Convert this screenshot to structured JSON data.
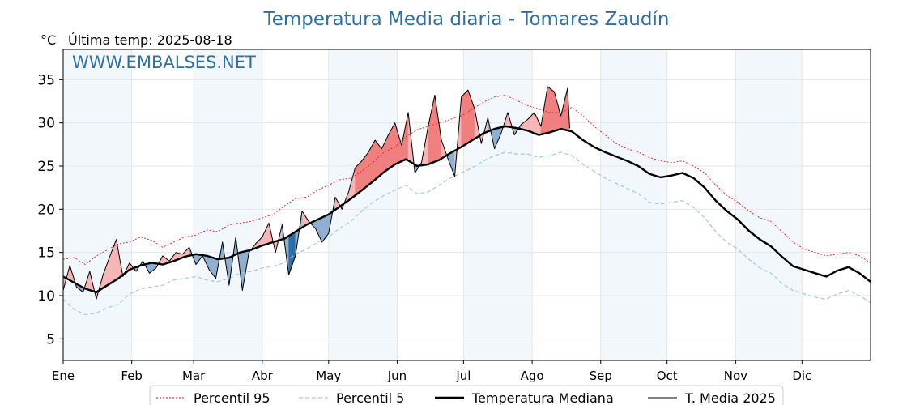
{
  "chart_data": {
    "type": "line",
    "title": "Temperatura Media diaria - Tomares  Zaudín",
    "unit_label": "°C",
    "last_temp_label": "Última temp: 2025-08-18",
    "watermark": "WWW.EMBALSES.NET",
    "xlim": [
      0,
      365
    ],
    "ylim": [
      2.5,
      38.5
    ],
    "y_ticks": [
      5,
      10,
      15,
      20,
      25,
      30,
      35
    ],
    "x_ticks": [
      {
        "label": "Ene",
        "day": 0
      },
      {
        "label": "Feb",
        "day": 31
      },
      {
        "label": "Mar",
        "day": 59
      },
      {
        "label": "Abr",
        "day": 90
      },
      {
        "label": "May",
        "day": 120
      },
      {
        "label": "Jun",
        "day": 151
      },
      {
        "label": "Jul",
        "day": 181
      },
      {
        "label": "Ago",
        "day": 212
      },
      {
        "label": "Sep",
        "day": 243
      },
      {
        "label": "Oct",
        "day": 273
      },
      {
        "label": "Nov",
        "day": 304
      },
      {
        "label": "Dic",
        "day": 334
      }
    ],
    "shaded_month_bands": [
      [
        0,
        31
      ],
      [
        59,
        90
      ],
      [
        120,
        151
      ],
      [
        181,
        212
      ],
      [
        243,
        273
      ],
      [
        304,
        334
      ]
    ],
    "grid": true,
    "legend_position": "bottom-center",
    "legend": [
      {
        "label": "Percentil 95",
        "key": "p95"
      },
      {
        "label": "Percentil 5",
        "key": "p5"
      },
      {
        "label": "Temperatura Mediana",
        "key": "median"
      },
      {
        "label": "T. Media 2025",
        "key": "current"
      }
    ],
    "colors": {
      "p95": "#e31a1c",
      "p5": "#9ecae1",
      "median": "#000000",
      "current": "#000000",
      "above_light": "#f7b6b6",
      "above_dark": "#f08080",
      "below_light": "#8fb0d0",
      "below_dark": "#2c6ea6",
      "title": "#2f6fa0",
      "watermark": "#2f6fa0",
      "band": "#f2f7fc"
    },
    "median": {
      "days": [
        0,
        5,
        10,
        15,
        20,
        25,
        30,
        35,
        40,
        45,
        50,
        55,
        60,
        65,
        70,
        75,
        80,
        85,
        90,
        95,
        100,
        105,
        110,
        115,
        120,
        125,
        130,
        135,
        140,
        145,
        150,
        155,
        160,
        165,
        170,
        175,
        180,
        185,
        190,
        195,
        200,
        205,
        210,
        215,
        220,
        225,
        230,
        235,
        240,
        245,
        250,
        255,
        260,
        265,
        270,
        275,
        280,
        285,
        290,
        295,
        300,
        305,
        310,
        315,
        320,
        325,
        330,
        335,
        340,
        345,
        350,
        355,
        360,
        365
      ],
      "values": [
        12.2,
        11.5,
        10.8,
        10.4,
        11.2,
        12.0,
        13.0,
        13.5,
        13.8,
        13.6,
        14.0,
        14.5,
        14.8,
        14.6,
        14.2,
        14.4,
        15.0,
        15.3,
        15.8,
        16.2,
        16.6,
        17.4,
        18.2,
        18.8,
        19.4,
        20.3,
        21.2,
        22.2,
        23.2,
        24.3,
        25.2,
        25.8,
        25.0,
        25.2,
        25.7,
        26.5,
        27.2,
        28.0,
        28.8,
        29.3,
        29.6,
        29.4,
        29.1,
        28.6,
        28.9,
        29.3,
        29.0,
        28.0,
        27.2,
        26.6,
        26.1,
        25.6,
        25.0,
        24.1,
        23.7,
        23.9,
        24.2,
        23.6,
        22.5,
        21.0,
        19.8,
        18.8,
        17.5,
        16.5,
        15.7,
        14.5,
        13.4,
        13.0,
        12.6,
        12.2,
        12.9,
        13.3,
        12.6,
        11.6
      ]
    },
    "p95": {
      "days": [
        0,
        5,
        10,
        15,
        20,
        25,
        30,
        35,
        40,
        45,
        50,
        55,
        60,
        65,
        70,
        75,
        80,
        85,
        90,
        95,
        100,
        105,
        110,
        115,
        120,
        125,
        130,
        135,
        140,
        145,
        150,
        155,
        160,
        165,
        170,
        175,
        180,
        185,
        190,
        195,
        200,
        205,
        210,
        215,
        220,
        225,
        230,
        235,
        240,
        245,
        250,
        255,
        260,
        265,
        270,
        275,
        280,
        285,
        290,
        295,
        300,
        305,
        310,
        315,
        320,
        325,
        330,
        335,
        340,
        345,
        350,
        355,
        360,
        365
      ],
      "values": [
        14.2,
        14.4,
        13.6,
        14.6,
        15.3,
        16.0,
        16.2,
        16.8,
        16.4,
        15.6,
        16.2,
        16.8,
        17.0,
        17.6,
        17.4,
        18.2,
        18.4,
        18.6,
        19.0,
        19.4,
        20.4,
        21.2,
        21.4,
        22.2,
        22.8,
        23.4,
        23.6,
        24.4,
        25.4,
        26.6,
        27.2,
        28.4,
        29.2,
        29.6,
        30.0,
        30.4,
        30.8,
        31.6,
        32.4,
        33.0,
        33.2,
        32.6,
        32.0,
        31.6,
        31.2,
        31.2,
        31.8,
        30.8,
        29.6,
        28.6,
        27.6,
        27.0,
        26.6,
        26.0,
        25.6,
        25.4,
        25.6,
        25.0,
        24.2,
        22.8,
        21.6,
        20.8,
        19.8,
        19.0,
        18.6,
        17.4,
        16.2,
        15.4,
        15.0,
        14.6,
        14.8,
        15.0,
        14.6,
        13.8
      ]
    },
    "p5": {
      "days": [
        0,
        5,
        10,
        15,
        20,
        25,
        30,
        35,
        40,
        45,
        50,
        55,
        60,
        65,
        70,
        75,
        80,
        85,
        90,
        95,
        100,
        105,
        110,
        115,
        120,
        125,
        130,
        135,
        140,
        145,
        150,
        155,
        160,
        165,
        170,
        175,
        180,
        185,
        190,
        195,
        200,
        205,
        210,
        215,
        220,
        225,
        230,
        235,
        240,
        245,
        250,
        255,
        260,
        265,
        270,
        275,
        280,
        285,
        290,
        295,
        300,
        305,
        310,
        315,
        320,
        325,
        330,
        335,
        340,
        345,
        350,
        355,
        360,
        365
      ],
      "values": [
        9.6,
        8.4,
        7.8,
        8.0,
        8.6,
        9.0,
        10.2,
        10.8,
        11.0,
        11.2,
        11.8,
        12.0,
        12.2,
        11.8,
        11.6,
        12.0,
        12.6,
        12.8,
        13.2,
        13.4,
        13.8,
        14.8,
        15.4,
        16.2,
        16.8,
        17.8,
        18.6,
        19.8,
        20.8,
        21.6,
        22.2,
        22.8,
        21.8,
        22.0,
        22.8,
        23.6,
        24.2,
        24.8,
        25.6,
        26.2,
        26.6,
        26.4,
        26.4,
        26.0,
        26.2,
        26.6,
        26.2,
        25.2,
        24.4,
        23.6,
        23.0,
        22.4,
        21.8,
        20.8,
        20.6,
        20.8,
        21.0,
        20.2,
        19.0,
        17.4,
        16.2,
        15.4,
        14.2,
        13.2,
        12.6,
        11.4,
        10.6,
        10.2,
        9.8,
        9.6,
        10.2,
        10.6,
        10.0,
        9.2
      ]
    },
    "current": {
      "days": [
        0,
        3,
        6,
        9,
        12,
        15,
        18,
        21,
        24,
        27,
        30,
        33,
        36,
        39,
        42,
        45,
        48,
        51,
        54,
        57,
        60,
        63,
        66,
        69,
        72,
        75,
        78,
        81,
        84,
        87,
        90,
        93,
        96,
        99,
        102,
        105,
        108,
        111,
        114,
        117,
        120,
        123,
        126,
        129,
        132,
        135,
        138,
        141,
        144,
        147,
        150,
        153,
        156,
        159,
        162,
        165,
        168,
        171,
        174,
        177,
        180,
        183,
        186,
        189,
        192,
        195,
        198,
        201,
        204,
        207,
        210,
        213,
        216,
        219,
        222,
        225,
        228,
        229
      ],
      "values": [
        10.6,
        13.5,
        11.0,
        10.4,
        12.8,
        9.6,
        12.4,
        14.5,
        16.5,
        12.2,
        13.8,
        12.8,
        14.0,
        12.6,
        13.2,
        14.6,
        14.0,
        15.0,
        14.8,
        15.6,
        13.6,
        14.6,
        13.0,
        12.0,
        16.2,
        11.2,
        16.8,
        10.6,
        15.0,
        16.0,
        16.8,
        18.4,
        15.0,
        18.2,
        12.4,
        14.6,
        19.8,
        18.6,
        17.8,
        16.2,
        17.2,
        21.4,
        20.0,
        22.0,
        24.8,
        25.6,
        26.6,
        28.0,
        27.0,
        28.6,
        30.0,
        27.4,
        31.2,
        24.2,
        25.4,
        29.6,
        33.2,
        28.0,
        25.8,
        23.8,
        33.0,
        33.8,
        31.6,
        27.6,
        30.6,
        27.0,
        28.8,
        31.2,
        28.6,
        29.8,
        30.4,
        31.2,
        29.6,
        34.2,
        33.6,
        30.8,
        34.0,
        29.4
      ]
    }
  }
}
